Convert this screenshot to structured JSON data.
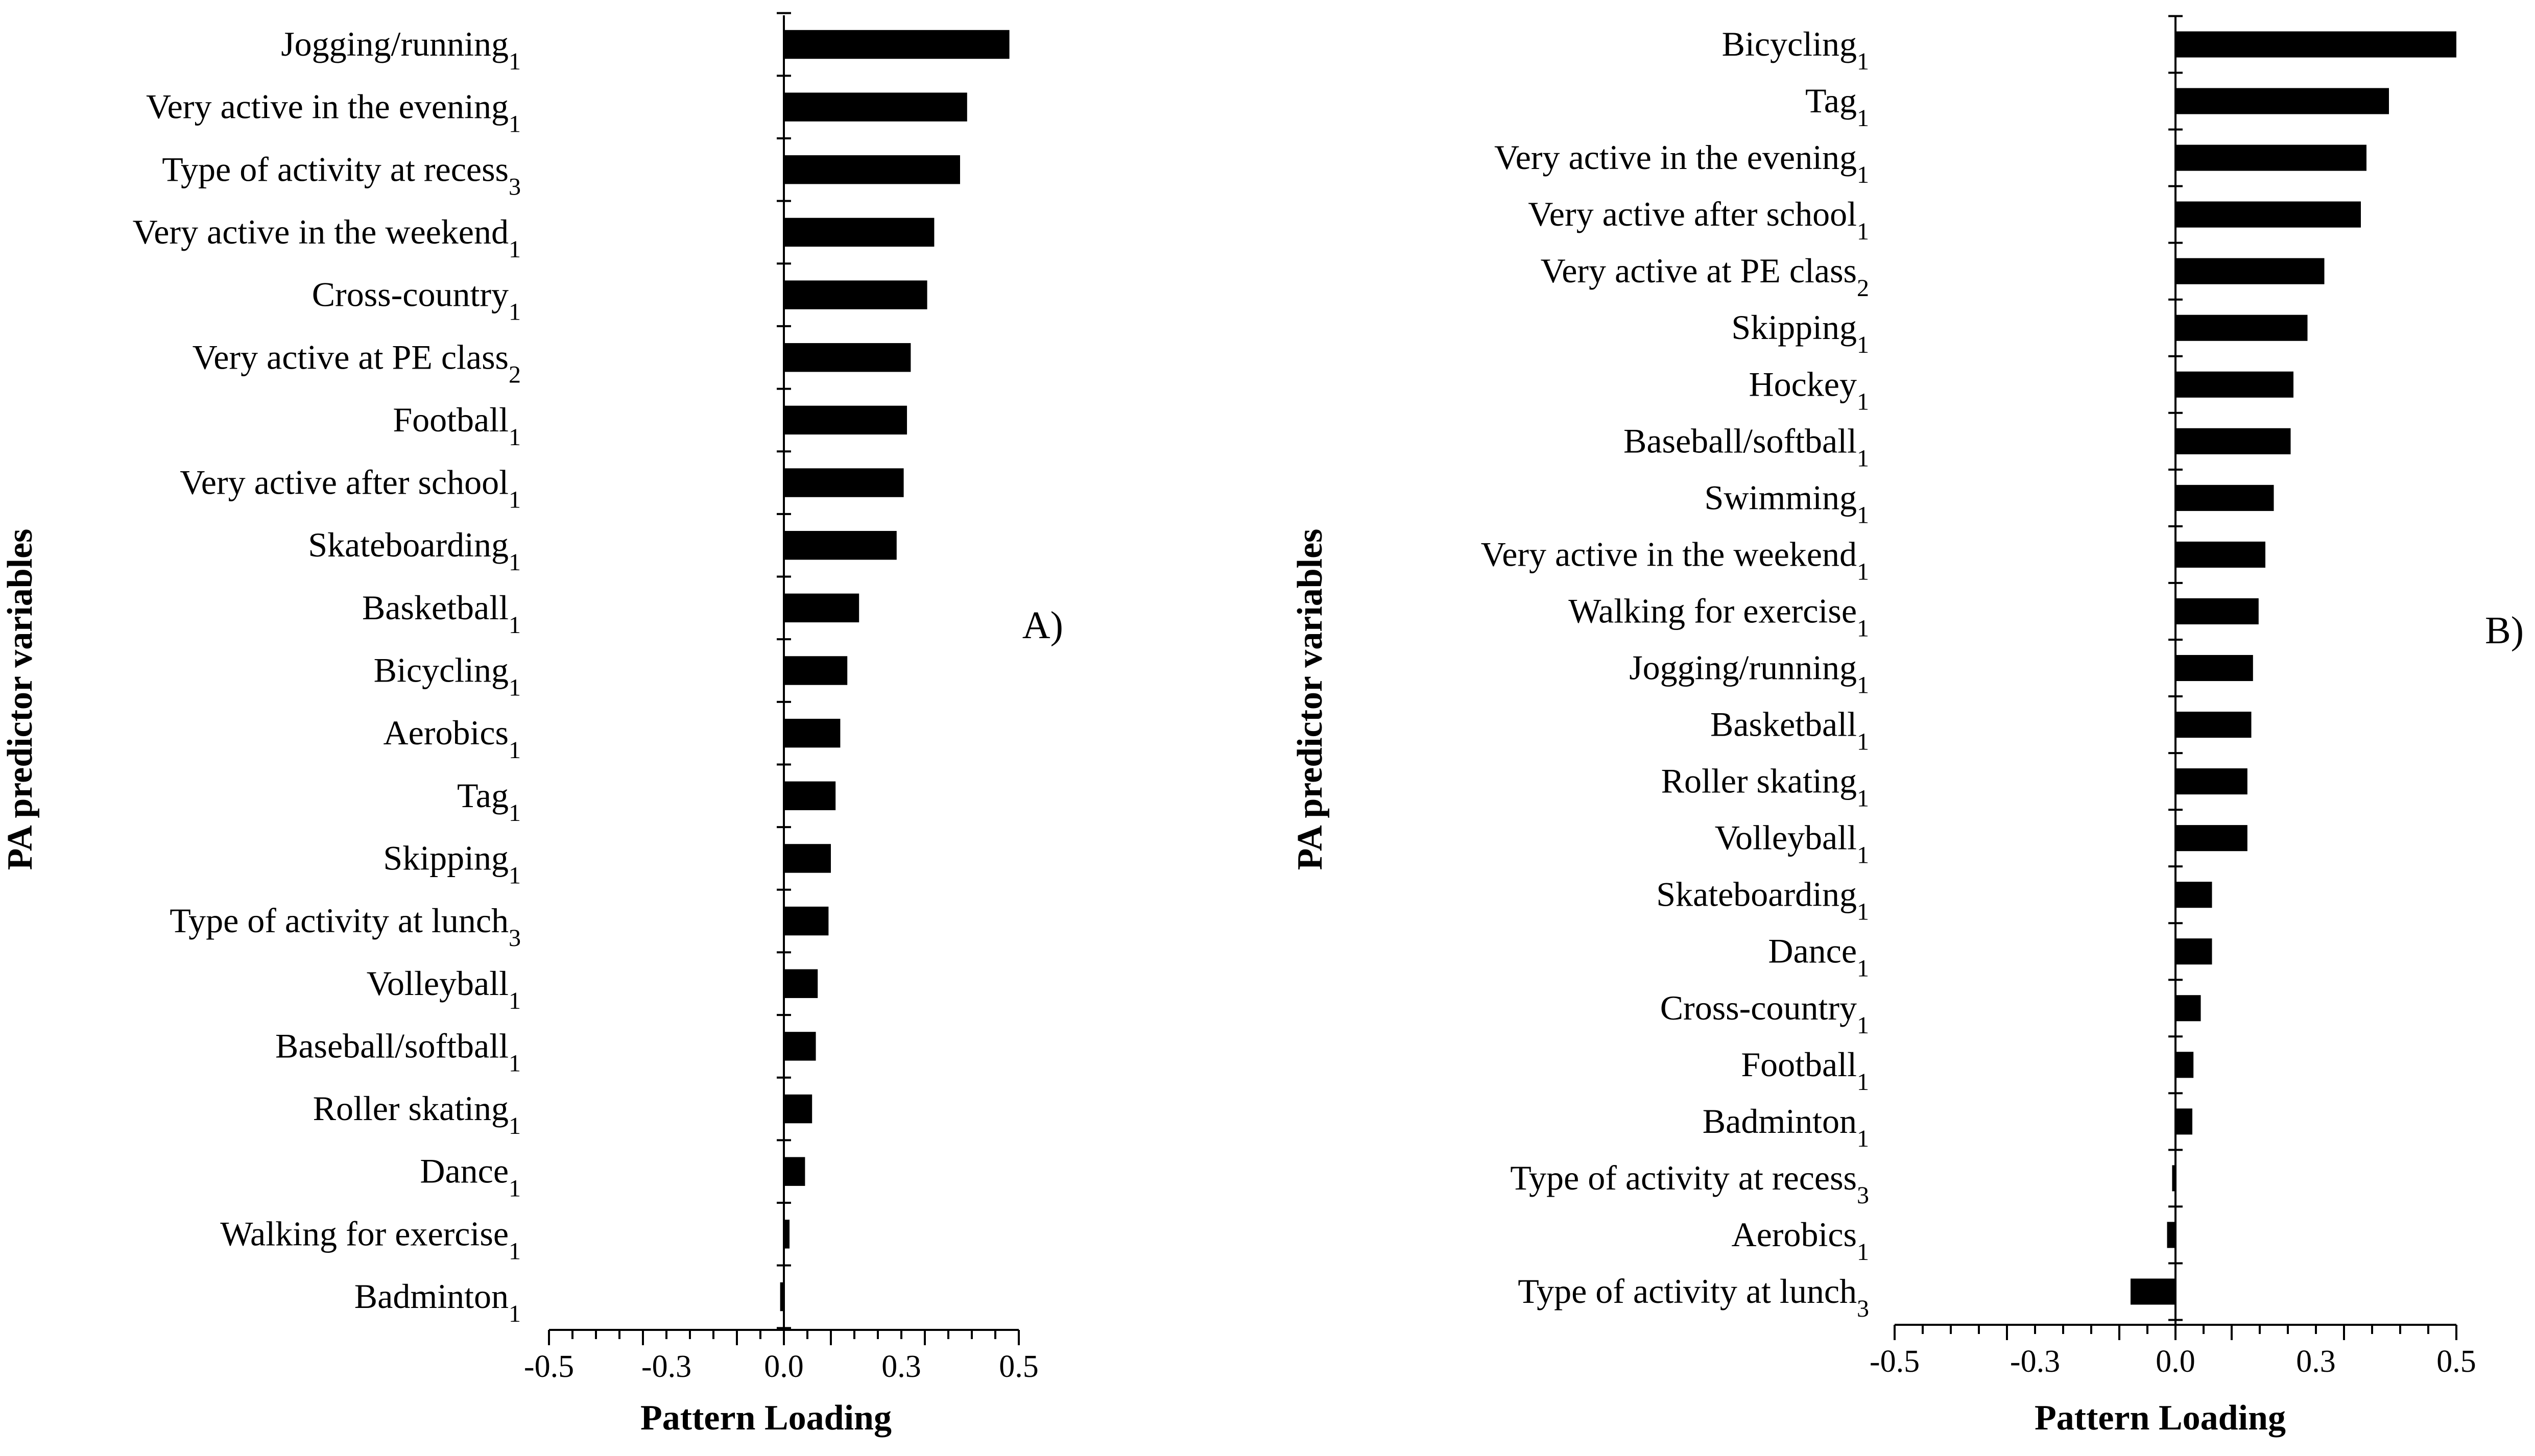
{
  "chart_data": [
    {
      "type": "bar",
      "orientation": "horizontal",
      "panel": "A)",
      "ylabel": "PA predictor variables",
      "xlabel": "Pattern Loading",
      "xlim": [
        -0.5,
        0.5
      ],
      "xticks": [
        "-0.5",
        "-0.3",
        "0.0",
        "0.3",
        "0.5"
      ],
      "categories": [
        {
          "name": "Jogging/running",
          "sub": "1",
          "value": 0.48
        },
        {
          "name": "Very active in the evening",
          "sub": "1",
          "value": 0.39
        },
        {
          "name": "Type of activity at recess",
          "sub": "3",
          "value": 0.375
        },
        {
          "name": "Very active in the weekend",
          "sub": "1",
          "value": 0.32
        },
        {
          "name": "Cross-country",
          "sub": "1",
          "value": 0.305
        },
        {
          "name": "Very active at PE class",
          "sub": "2",
          "value": 0.27
        },
        {
          "name": "Football",
          "sub": "1",
          "value": 0.262
        },
        {
          "name": "Very active after school",
          "sub": "1",
          "value": 0.255
        },
        {
          "name": "Skateboarding",
          "sub": "1",
          "value": 0.24
        },
        {
          "name": "Basketball",
          "sub": "1",
          "value": 0.16
        },
        {
          "name": "Bicycling",
          "sub": "1",
          "value": 0.135
        },
        {
          "name": "Aerobics",
          "sub": "1",
          "value": 0.12
        },
        {
          "name": "Tag",
          "sub": "1",
          "value": 0.11
        },
        {
          "name": "Skipping",
          "sub": "1",
          "value": 0.1
        },
        {
          "name": "Type of activity at lunch",
          "sub": "3",
          "value": 0.095
        },
        {
          "name": "Volleyball",
          "sub": "1",
          "value": 0.072
        },
        {
          "name": "Baseball/softball",
          "sub": "1",
          "value": 0.068
        },
        {
          "name": "Roller skating",
          "sub": "1",
          "value": 0.06
        },
        {
          "name": "Dance",
          "sub": "1",
          "value": 0.045
        },
        {
          "name": "Walking for exercise",
          "sub": "1",
          "value": 0.012
        },
        {
          "name": "Badminton",
          "sub": "1",
          "value": -0.008
        }
      ]
    },
    {
      "type": "bar",
      "orientation": "horizontal",
      "panel": "B)",
      "ylabel": "PA predictor variables",
      "xlabel": "Pattern Loading",
      "xlim": [
        -0.5,
        0.5
      ],
      "xticks": [
        "-0.5",
        "-0.3",
        "0.0",
        "0.3",
        "0.5"
      ],
      "categories": [
        {
          "name": "Bicycling",
          "sub": "1",
          "value": 0.5
        },
        {
          "name": "Tag",
          "sub": "1",
          "value": 0.38
        },
        {
          "name": "Very active in the evening",
          "sub": "1",
          "value": 0.34
        },
        {
          "name": "Very active after school",
          "sub": "1",
          "value": 0.33
        },
        {
          "name": "Very active at PE class",
          "sub": "2",
          "value": 0.265
        },
        {
          "name": "Skipping",
          "sub": "1",
          "value": 0.235
        },
        {
          "name": "Hockey",
          "sub": "1",
          "value": 0.21
        },
        {
          "name": "Baseball/softball",
          "sub": "1",
          "value": 0.205
        },
        {
          "name": "Swimming",
          "sub": "1",
          "value": 0.175
        },
        {
          "name": "Very active in the weekend",
          "sub": "1",
          "value": 0.16
        },
        {
          "name": "Walking for exercise",
          "sub": "1",
          "value": 0.148
        },
        {
          "name": "Jogging/running",
          "sub": "1",
          "value": 0.138
        },
        {
          "name": "Basketball",
          "sub": "1",
          "value": 0.135
        },
        {
          "name": "Roller skating",
          "sub": "1",
          "value": 0.128
        },
        {
          "name": "Volleyball",
          "sub": "1",
          "value": 0.128
        },
        {
          "name": "Skateboarding",
          "sub": "1",
          "value": 0.065
        },
        {
          "name": "Dance",
          "sub": "1",
          "value": 0.065
        },
        {
          "name": "Cross-country",
          "sub": "1",
          "value": 0.045
        },
        {
          "name": "Football",
          "sub": "1",
          "value": 0.032
        },
        {
          "name": "Badminton",
          "sub": "1",
          "value": 0.03
        },
        {
          "name": "Type of activity at recess",
          "sub": "3",
          "value": -0.006
        },
        {
          "name": "Aerobics",
          "sub": "1",
          "value": -0.015
        },
        {
          "name": "Type of activity at lunch",
          "sub": "3",
          "value": -0.08
        }
      ]
    }
  ]
}
